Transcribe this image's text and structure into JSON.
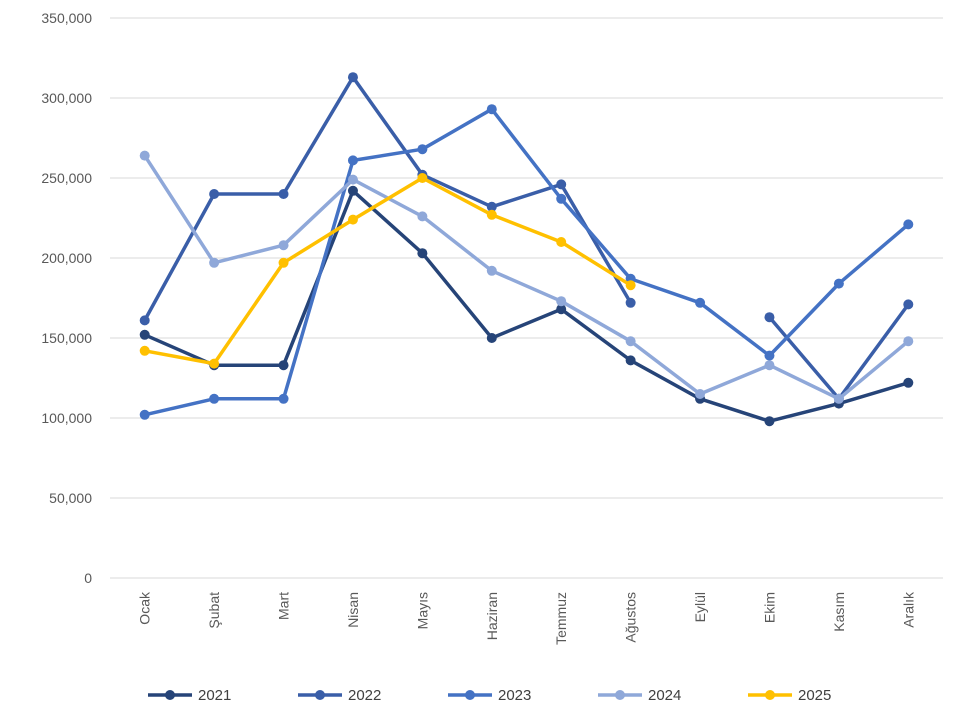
{
  "chart_data": {
    "type": "line",
    "categories": [
      "Ocak",
      "Şubat",
      "Mart",
      "Nisan",
      "Mayıs",
      "Haziran",
      "Temmuz",
      "Ağustos",
      "Eylül",
      "Ekim",
      "Kasım",
      "Aralık"
    ],
    "ylim": [
      0,
      350000
    ],
    "yticks": [
      0,
      50000,
      100000,
      150000,
      200000,
      250000,
      300000,
      350000
    ],
    "ytick_labels": [
      "0",
      "50,000",
      "100,000",
      "150,000",
      "200,000",
      "250,000",
      "300,000",
      "350,000"
    ],
    "grid": true,
    "legend_position": "bottom",
    "series": [
      {
        "name": "2021",
        "color": "#264478",
        "values": [
          152000,
          133000,
          133000,
          242000,
          203000,
          150000,
          168000,
          136000,
          112000,
          98000,
          109000,
          122000
        ]
      },
      {
        "name": "2022",
        "color": "#3a5ea8",
        "values": [
          161000,
          240000,
          240000,
          313000,
          252000,
          232000,
          246000,
          172000,
          null,
          163000,
          112000,
          171000
        ]
      },
      {
        "name": "2023",
        "color": "#4472c4",
        "values": [
          102000,
          112000,
          112000,
          261000,
          268000,
          293000,
          237000,
          187000,
          172000,
          139000,
          184000,
          221000
        ]
      },
      {
        "name": "2024",
        "color": "#8fa8d9",
        "values": [
          264000,
          197000,
          208000,
          249000,
          226000,
          192000,
          173000,
          148000,
          115000,
          133000,
          112000,
          148000
        ]
      },
      {
        "name": "2025",
        "color": "#ffc000",
        "values": [
          142000,
          134000,
          197000,
          224000,
          250000,
          227000,
          210000,
          183000,
          null,
          null,
          null,
          null
        ]
      }
    ]
  }
}
